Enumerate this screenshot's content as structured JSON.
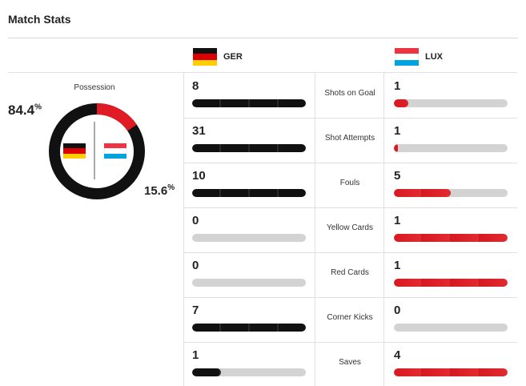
{
  "header": {
    "title": "Match Stats"
  },
  "teams": {
    "home": {
      "abbr": "GER",
      "flag": "germany-flag",
      "color": "#111111"
    },
    "away": {
      "abbr": "LUX",
      "flag": "luxembourg-flag",
      "color": "#e01b24"
    }
  },
  "possession": {
    "label": "Possession",
    "home_value": "84.4",
    "away_value": "15.6",
    "unit": "%",
    "home_fraction": 0.844,
    "away_fraction": 0.156
  },
  "stats": [
    {
      "label": "Shots on Goal",
      "home": "8",
      "away": "1",
      "home_fill": 1.0,
      "away_fill": 0.125
    },
    {
      "label": "Shot Attempts",
      "home": "31",
      "away": "1",
      "home_fill": 1.0,
      "away_fill": 0.032
    },
    {
      "label": "Fouls",
      "home": "10",
      "away": "5",
      "home_fill": 1.0,
      "away_fill": 0.5
    },
    {
      "label": "Yellow Cards",
      "home": "0",
      "away": "1",
      "home_fill": 0.0,
      "away_fill": 1.0
    },
    {
      "label": "Red Cards",
      "home": "0",
      "away": "1",
      "home_fill": 0.0,
      "away_fill": 1.0
    },
    {
      "label": "Corner Kicks",
      "home": "7",
      "away": "0",
      "home_fill": 1.0,
      "away_fill": 0.0
    },
    {
      "label": "Saves",
      "home": "1",
      "away": "4",
      "home_fill": 0.25,
      "away_fill": 1.0
    }
  ]
}
